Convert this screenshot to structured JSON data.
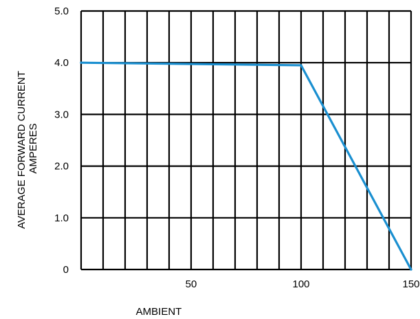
{
  "chart_data": {
    "type": "line",
    "title": "",
    "xlabel": "AMBIENT",
    "ylabel_line1": "AVERAGE FORWARD CURRENT",
    "ylabel_line2": "AMPERES",
    "xlim": [
      0,
      150
    ],
    "ylim": [
      0,
      5
    ],
    "x_ticks": [
      {
        "value": 50,
        "label": "50"
      },
      {
        "value": 100,
        "label": "100"
      },
      {
        "value": 150,
        "label": "150"
      }
    ],
    "y_ticks": [
      {
        "value": 0,
        "label": "0"
      },
      {
        "value": 1,
        "label": "1.0"
      },
      {
        "value": 2,
        "label": "2.0"
      },
      {
        "value": 3,
        "label": "3.0"
      },
      {
        "value": 4,
        "label": "4.0"
      },
      {
        "value": 5,
        "label": "5.0"
      }
    ],
    "grid": true,
    "series": [
      {
        "x": [
          0,
          100,
          150
        ],
        "y": [
          4.0,
          3.95,
          0
        ],
        "color": "#1a8fd0"
      }
    ]
  }
}
